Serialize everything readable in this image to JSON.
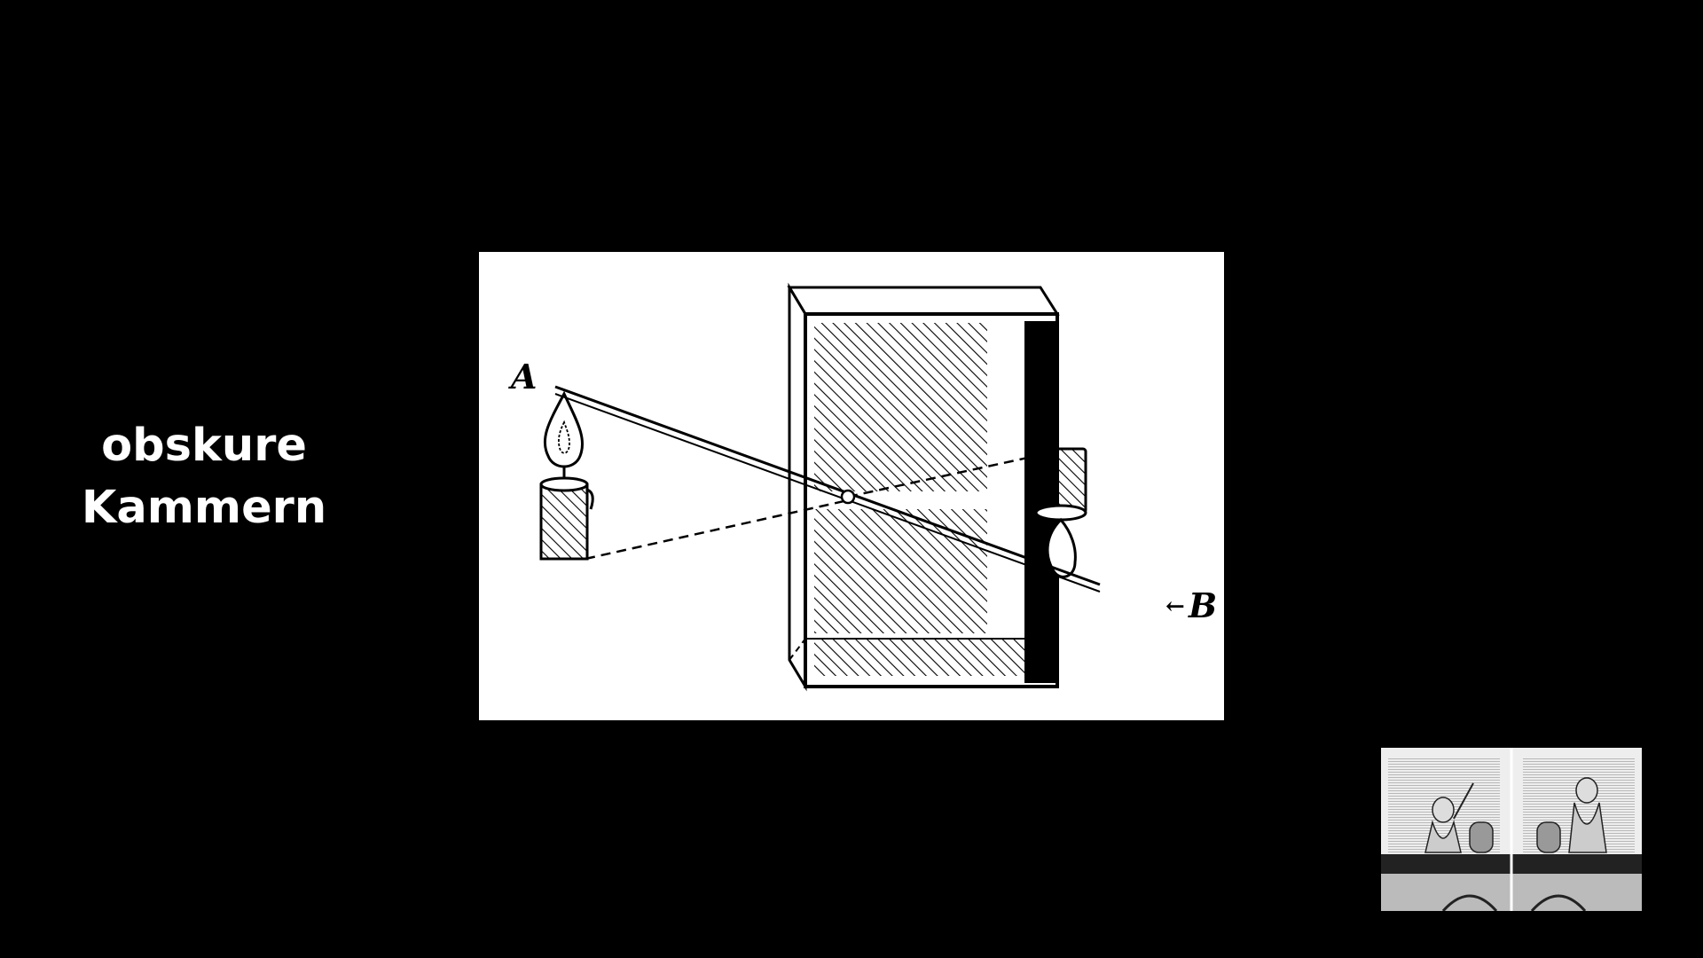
{
  "slide": {
    "title_lines": [
      "obskure",
      "Kammern"
    ]
  },
  "diagram": {
    "label_a": "A",
    "label_b": "B",
    "arrow_glyph": "←"
  },
  "colors": {
    "background": "#000000",
    "text": "#ffffff",
    "ink": "#000000",
    "paper": "#ffffff"
  },
  "icons": {
    "candle": "candle-icon",
    "thumbnail": "engraving-thumbnail"
  }
}
